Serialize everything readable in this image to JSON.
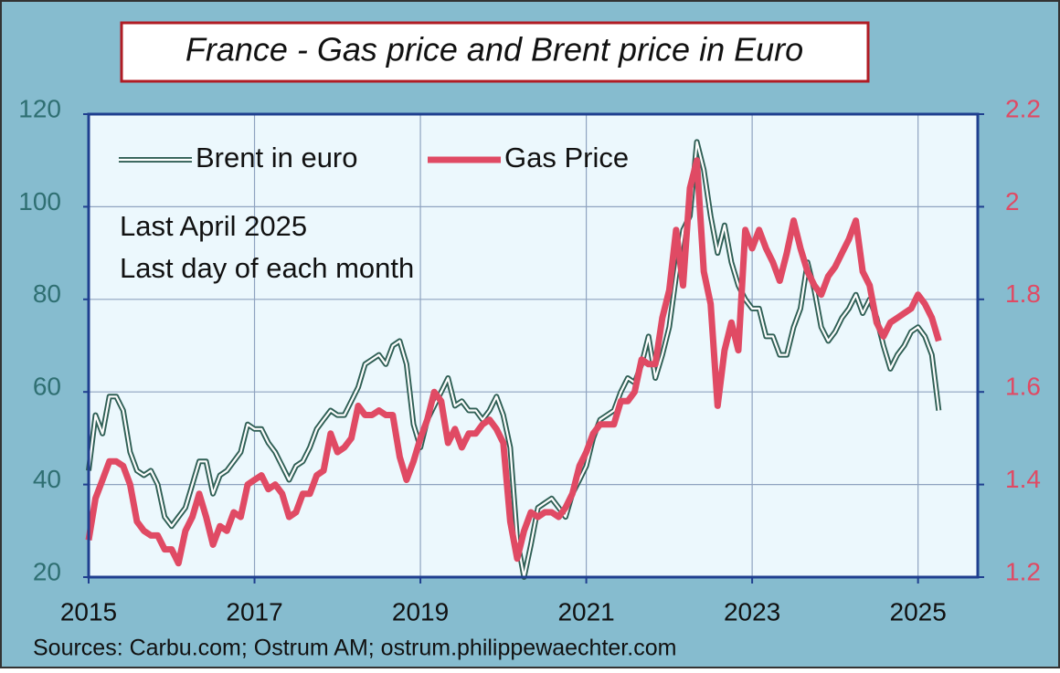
{
  "chart_data": {
    "type": "line",
    "title": "France - Gas price and Brent price in Euro",
    "annotations": [
      "Last April 2025",
      "Last day of each month"
    ],
    "source": "Sources: Carbu.com; Ostrum AM; ostrum.philippewaechter.com",
    "x": [
      2015,
      2015.083,
      2015.167,
      2015.25,
      2015.333,
      2015.417,
      2015.5,
      2015.583,
      2015.667,
      2015.75,
      2015.833,
      2015.917,
      2016,
      2016.083,
      2016.167,
      2016.25,
      2016.333,
      2016.417,
      2016.5,
      2016.583,
      2016.667,
      2016.75,
      2016.833,
      2016.917,
      2017,
      2017.083,
      2017.167,
      2017.25,
      2017.333,
      2017.417,
      2017.5,
      2017.583,
      2017.667,
      2017.75,
      2017.833,
      2017.917,
      2018,
      2018.083,
      2018.167,
      2018.25,
      2018.333,
      2018.417,
      2018.5,
      2018.583,
      2018.667,
      2018.75,
      2018.833,
      2018.917,
      2019,
      2019.083,
      2019.167,
      2019.25,
      2019.333,
      2019.417,
      2019.5,
      2019.583,
      2019.667,
      2019.75,
      2019.833,
      2019.917,
      2020,
      2020.083,
      2020.167,
      2020.25,
      2020.333,
      2020.417,
      2020.5,
      2020.583,
      2020.667,
      2020.75,
      2020.833,
      2020.917,
      2021,
      2021.083,
      2021.167,
      2021.25,
      2021.333,
      2021.417,
      2021.5,
      2021.583,
      2021.667,
      2021.75,
      2021.833,
      2021.917,
      2022,
      2022.083,
      2022.167,
      2022.25,
      2022.333,
      2022.417,
      2022.5,
      2022.583,
      2022.667,
      2022.75,
      2022.833,
      2022.917,
      2023,
      2023.083,
      2023.167,
      2023.25,
      2023.333,
      2023.417,
      2023.5,
      2023.583,
      2023.667,
      2023.75,
      2023.833,
      2023.917,
      2024,
      2024.083,
      2024.167,
      2024.25,
      2024.333,
      2024.417,
      2024.5,
      2024.583,
      2024.667,
      2024.75,
      2024.833,
      2024.917,
      2025,
      2025.083,
      2025.167,
      2025.25
    ],
    "xlim": [
      2015,
      2025.72
    ],
    "xticks": [
      2015,
      2017,
      2019,
      2021,
      2023,
      2025
    ],
    "ylim": [
      20,
      120
    ],
    "yticks": [
      20,
      40,
      60,
      80,
      100,
      120
    ],
    "y2lim": [
      1.2,
      2.2
    ],
    "y2ticks": [
      1.2,
      1.4,
      1.6,
      1.8,
      2,
      2.2
    ],
    "grid": true,
    "legend": "top-left",
    "series": [
      {
        "name": "Brent in euro",
        "color": "#2f5f55",
        "axis": "y",
        "values": [
          43,
          55,
          51,
          59,
          59,
          56,
          47,
          43,
          42,
          43,
          40,
          33,
          31,
          33,
          35,
          40,
          45,
          45,
          38,
          42,
          43,
          45,
          47,
          53,
          52,
          52,
          49,
          47,
          44,
          41,
          44,
          45,
          48,
          52,
          54,
          56,
          55,
          55,
          58,
          61,
          66,
          67,
          68,
          66,
          70,
          71,
          66,
          53,
          48,
          54,
          57,
          60,
          63,
          57,
          58,
          56,
          56,
          54,
          56,
          59,
          55,
          48,
          28,
          20,
          27,
          35,
          36,
          37,
          35,
          33,
          38,
          41,
          44,
          50,
          54,
          55,
          56,
          60,
          63,
          62,
          66,
          72,
          63,
          68,
          74,
          85,
          95,
          98,
          114,
          108,
          98,
          90,
          96,
          88,
          83,
          80,
          78,
          78,
          72,
          72,
          68,
          68,
          74,
          78,
          88,
          82,
          74,
          71,
          73,
          76,
          78,
          81,
          77,
          80,
          76,
          70,
          65,
          68,
          70,
          73,
          74,
          72,
          68,
          56
        ]
      },
      {
        "name": "Gas Price",
        "color": "#e04a64",
        "axis": "y2",
        "values": [
          1.28,
          1.37,
          1.41,
          1.45,
          1.45,
          1.44,
          1.4,
          1.32,
          1.3,
          1.29,
          1.29,
          1.26,
          1.26,
          1.23,
          1.3,
          1.33,
          1.38,
          1.33,
          1.27,
          1.31,
          1.3,
          1.34,
          1.33,
          1.4,
          1.41,
          1.42,
          1.39,
          1.4,
          1.38,
          1.33,
          1.34,
          1.38,
          1.38,
          1.42,
          1.43,
          1.51,
          1.47,
          1.48,
          1.5,
          1.57,
          1.55,
          1.55,
          1.56,
          1.55,
          1.55,
          1.46,
          1.41,
          1.45,
          1.5,
          1.54,
          1.6,
          1.58,
          1.49,
          1.52,
          1.48,
          1.51,
          1.51,
          1.53,
          1.54,
          1.52,
          1.49,
          1.32,
          1.24,
          1.3,
          1.34,
          1.33,
          1.34,
          1.34,
          1.33,
          1.35,
          1.38,
          1.44,
          1.47,
          1.51,
          1.53,
          1.53,
          1.53,
          1.58,
          1.58,
          1.6,
          1.67,
          1.66,
          1.66,
          1.76,
          1.82,
          1.95,
          1.83,
          2.04,
          2.1,
          1.86,
          1.79,
          1.57,
          1.69,
          1.75,
          1.69,
          1.95,
          1.91,
          1.95,
          1.91,
          1.88,
          1.84,
          1.9,
          1.97,
          1.91,
          1.86,
          1.83,
          1.81,
          1.85,
          1.87,
          1.9,
          1.93,
          1.97,
          1.86,
          1.83,
          1.75,
          1.72,
          1.75,
          1.76,
          1.77,
          1.78,
          1.81,
          1.79,
          1.76,
          1.71
        ]
      }
    ]
  }
}
